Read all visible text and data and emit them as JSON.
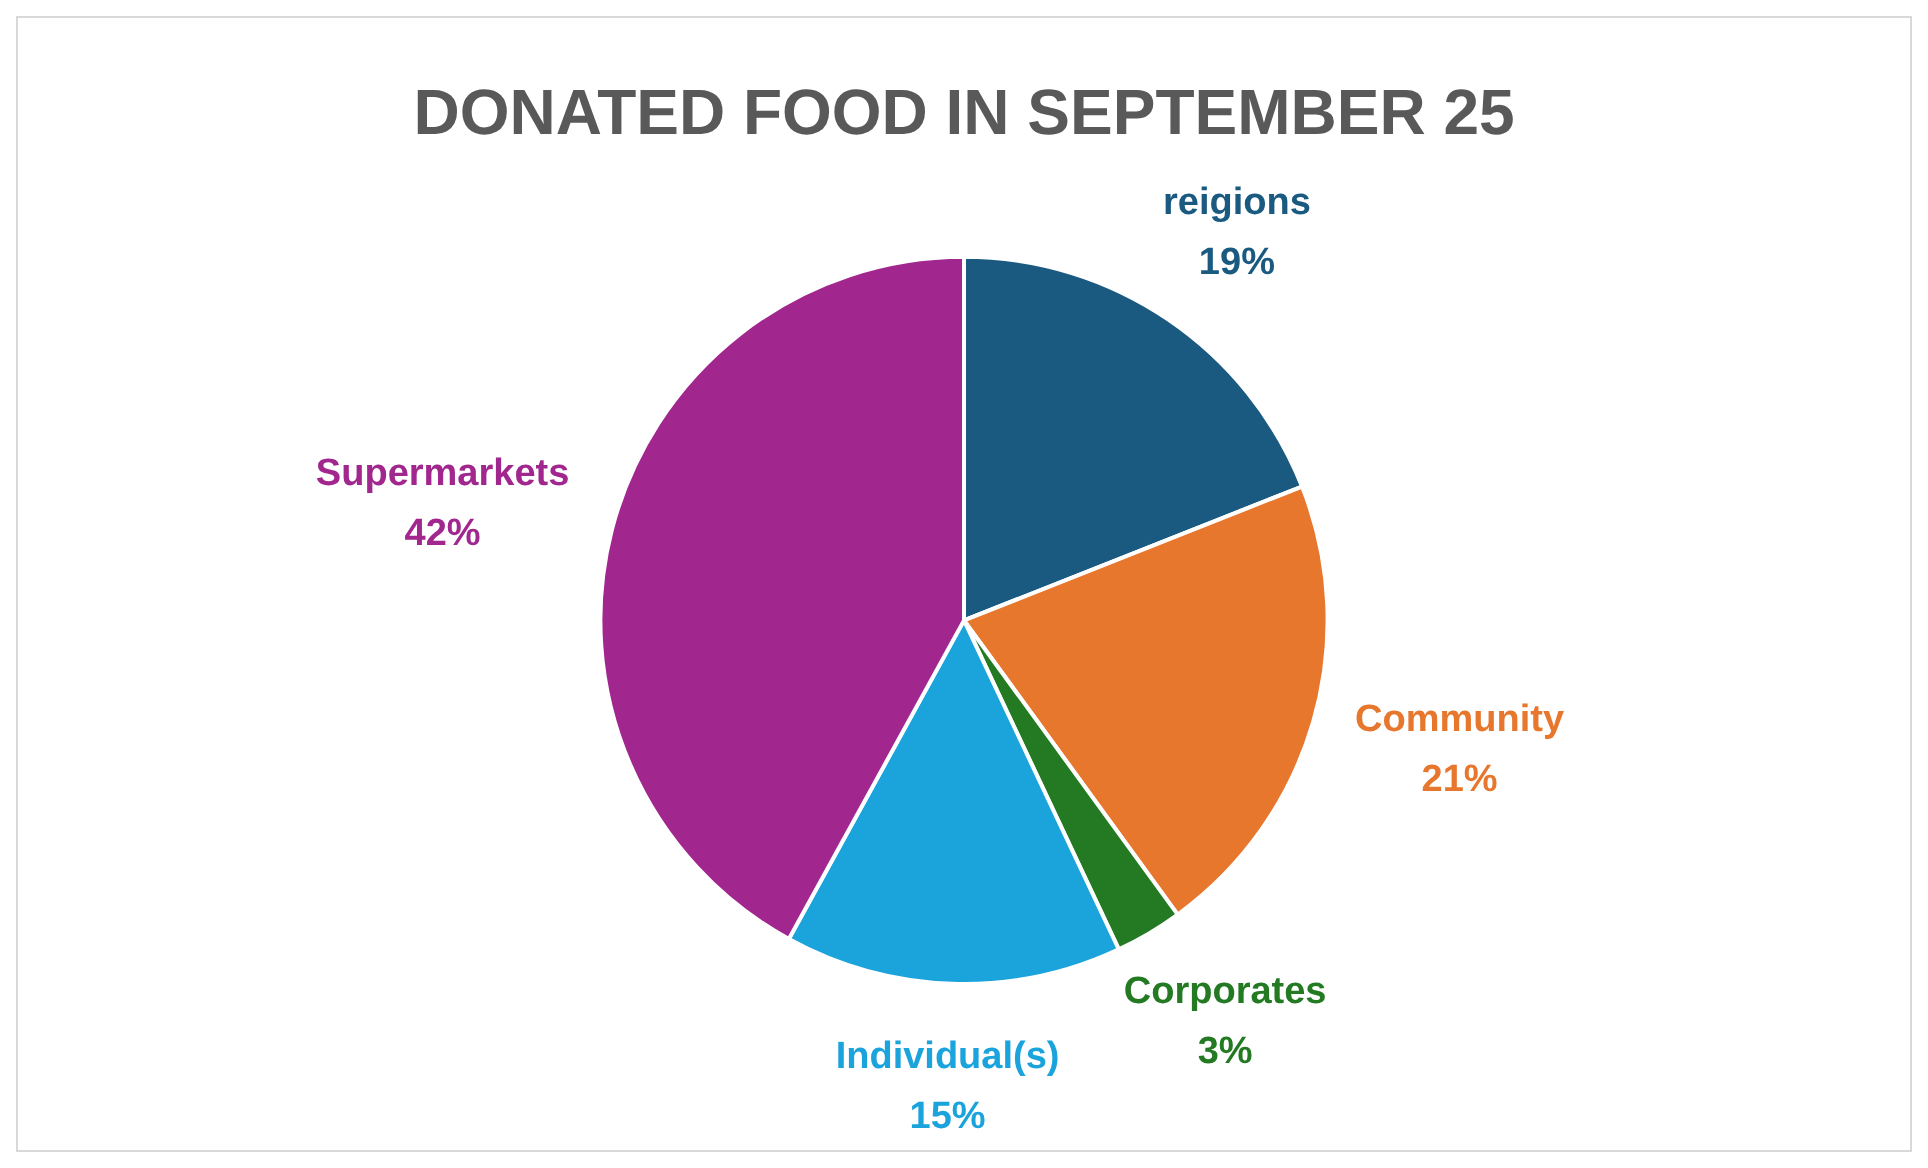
{
  "chart_data": {
    "type": "pie",
    "title": "DONATED FOOD IN SEPTEMBER 25",
    "categories": [
      "reigions",
      "Community",
      "Corporates",
      "Individual(s)",
      "Supermarkets"
    ],
    "values": [
      19,
      21,
      3,
      15,
      42
    ],
    "value_labels": [
      "19%",
      "21%",
      "3%",
      "15%",
      "42%"
    ],
    "colors": [
      "#1a5a80",
      "#e8772e",
      "#237a23",
      "#1ba3dc",
      "#a1278f"
    ],
    "legend": false
  }
}
